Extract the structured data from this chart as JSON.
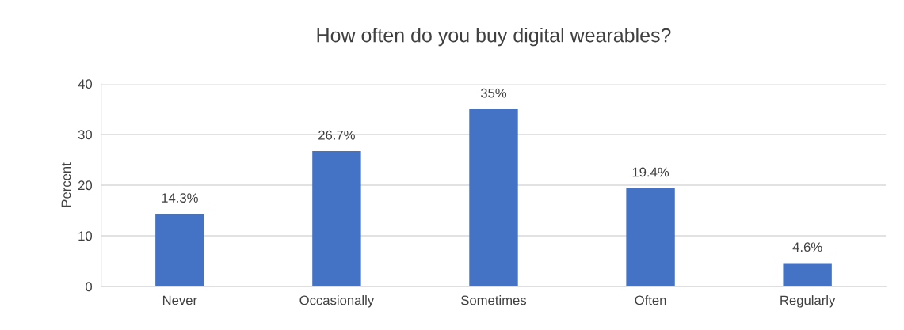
{
  "chart_data": {
    "type": "bar",
    "title": "How often do you buy digital wearables?",
    "ylabel": "Percent",
    "categories": [
      "Never",
      "Occasionally",
      "Sometimes",
      "Often",
      "Regularly"
    ],
    "values": [
      14.3,
      26.7,
      35,
      19.4,
      4.6
    ],
    "value_labels": [
      "14.3%",
      "26.7%",
      "35%",
      "19.4%",
      "4.6%"
    ],
    "color": "#4472c4",
    "ylim": [
      0,
      40
    ],
    "yticks": [
      0,
      10,
      20,
      30,
      40
    ],
    "grid": "y",
    "legend": false
  }
}
